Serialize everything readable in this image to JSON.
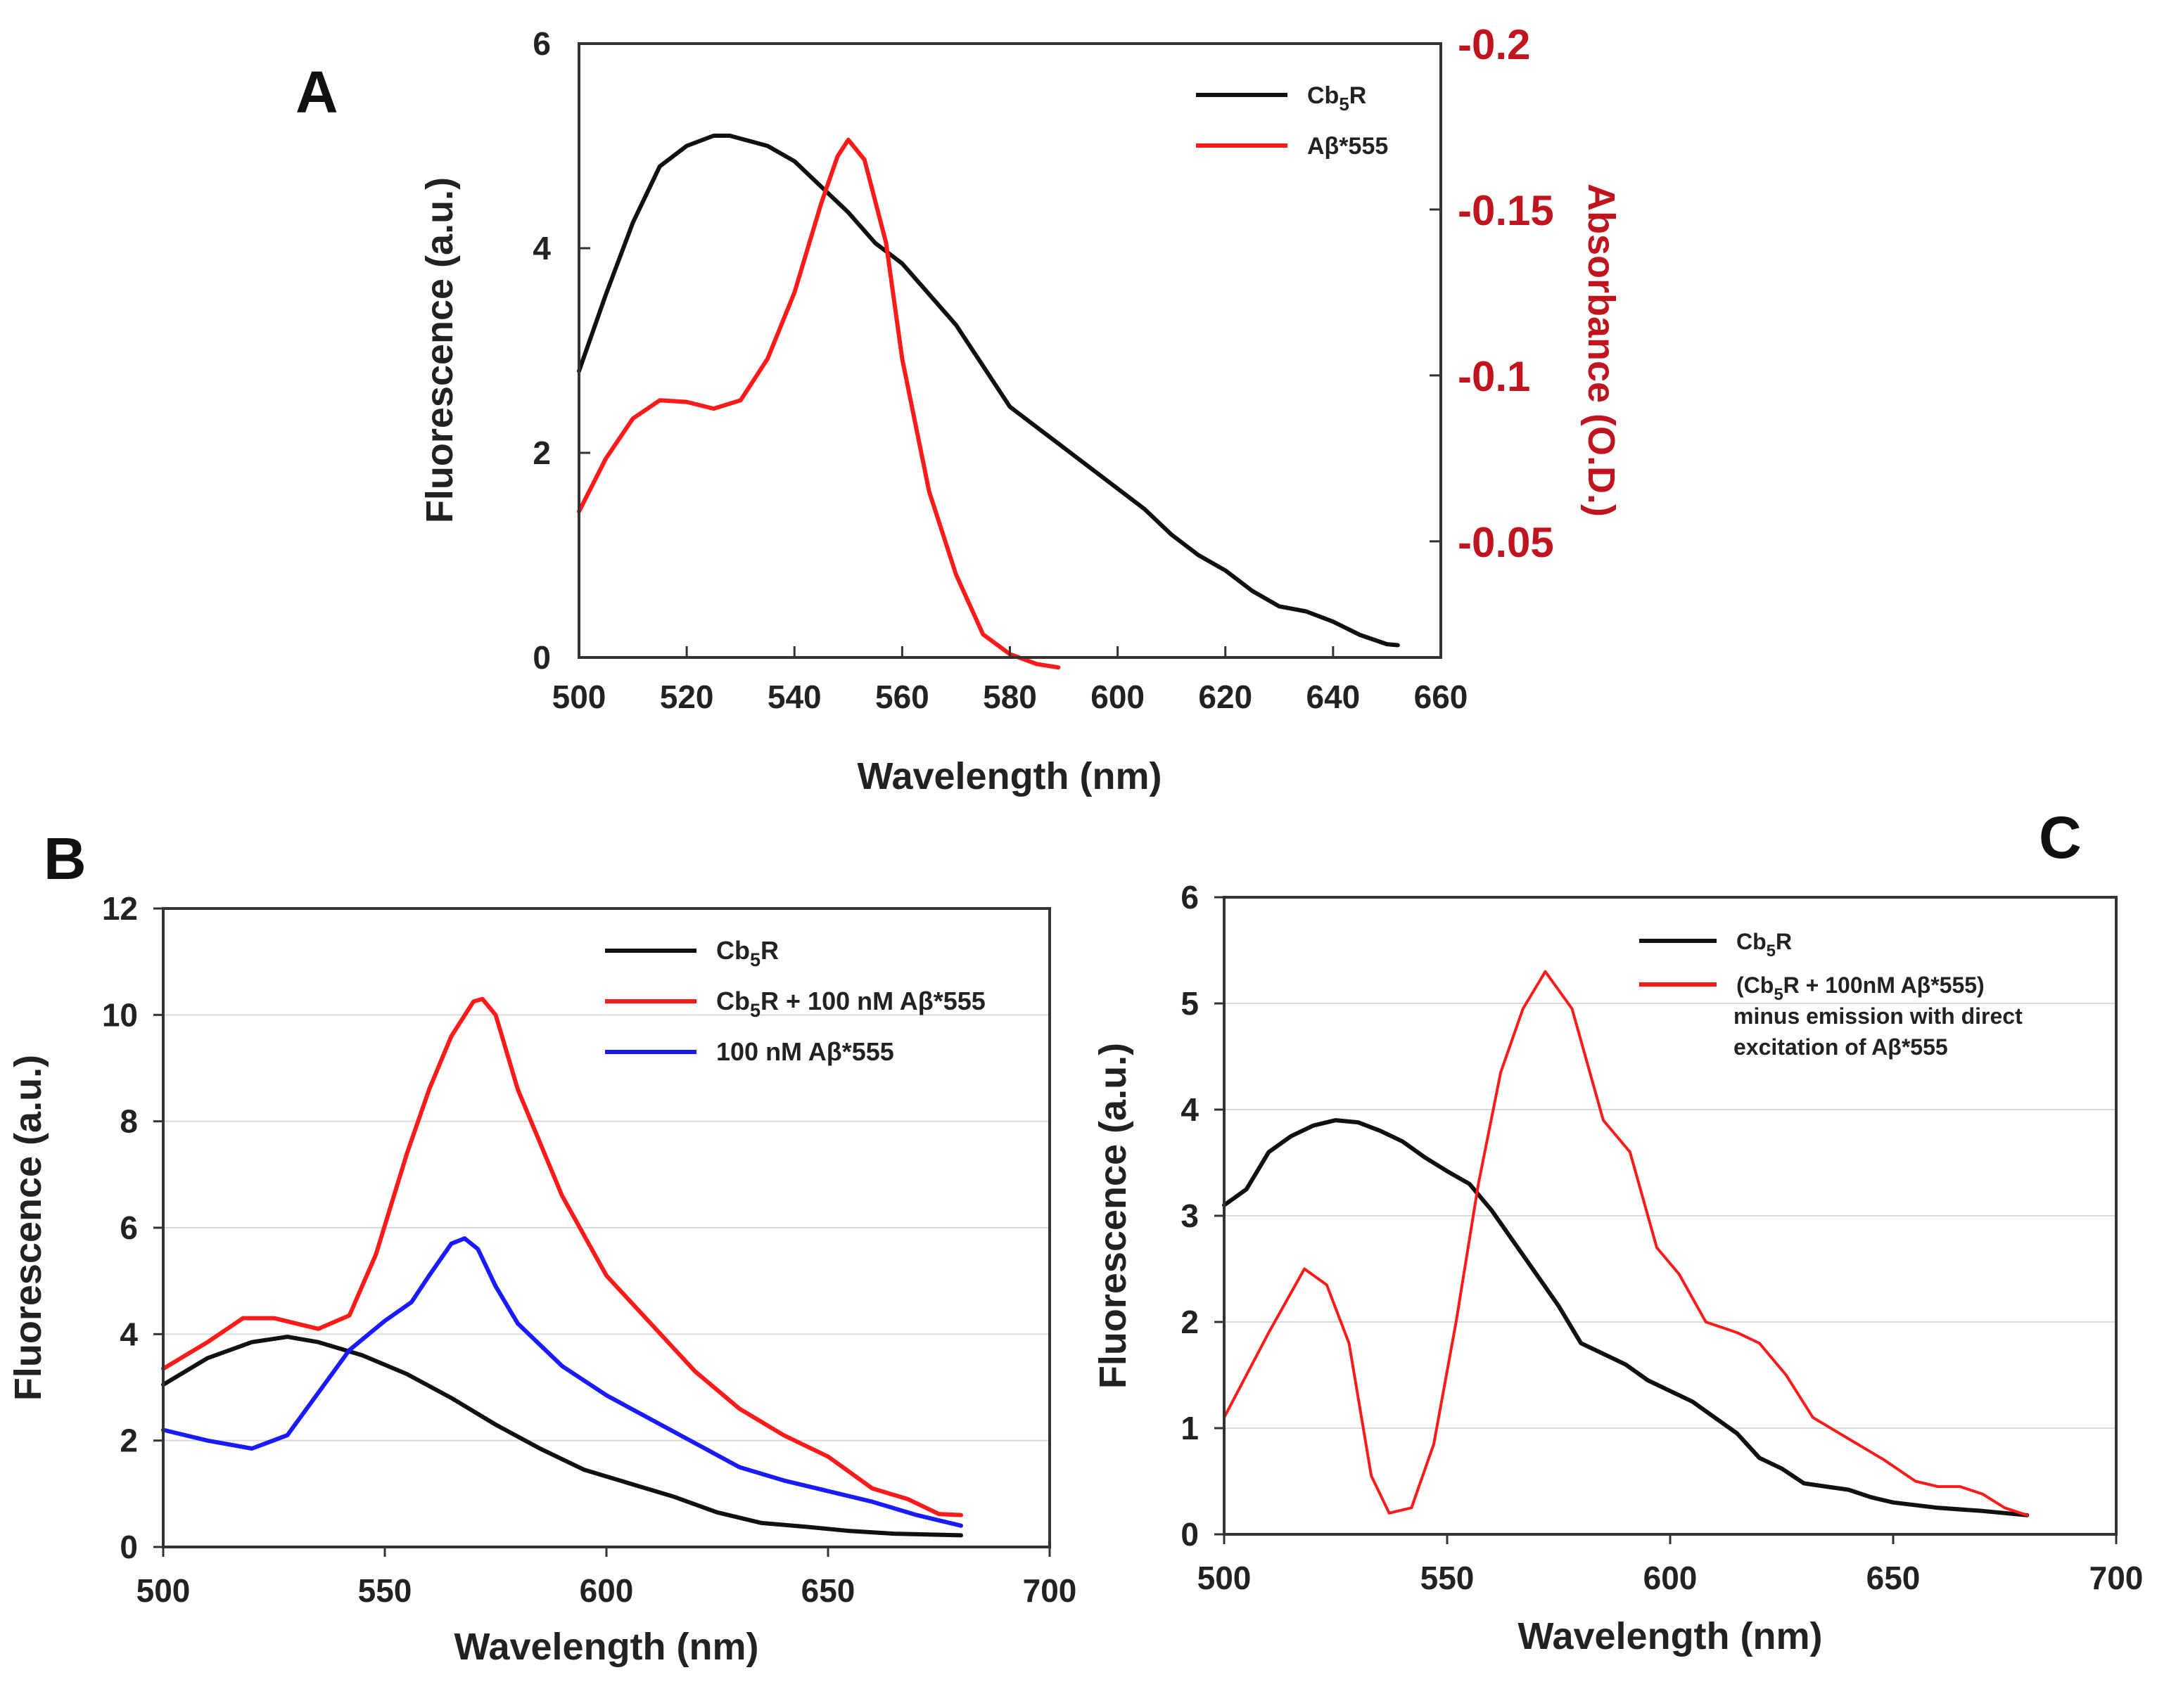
{
  "figure": {
    "panels": [
      "A",
      "B",
      "C"
    ]
  },
  "colors": {
    "black": "#111111",
    "red": "#ff1a1a",
    "blue": "#1a1aff",
    "absorbance_axis": "#c0151f",
    "background": "#ffffff"
  },
  "chart_data": [
    {
      "panel": "A",
      "type": "line",
      "xlabel": "Wavelength (nm)",
      "ylabel": "Fluorescence (a.u.)",
      "y2label": "Absorbance (O.D.)",
      "xlim": [
        500,
        660
      ],
      "ylim": [
        0,
        6
      ],
      "y2lim": [
        -0.015,
        -0.2
      ],
      "x_ticks": [
        500,
        520,
        540,
        560,
        580,
        600,
        620,
        640,
        660
      ],
      "x_tick_labels": [
        "500",
        "520",
        "540",
        "560",
        "580",
        "600",
        "620",
        "640",
        "660"
      ],
      "y_ticks": [
        0,
        2,
        4,
        6
      ],
      "y_tick_labels": [
        "0",
        "2",
        "4",
        "6"
      ],
      "y2_ticks": [
        -0.05,
        -0.1,
        -0.15,
        -0.2
      ],
      "y2_tick_labels": [
        "-0.05",
        "-0.1",
        "-0.15",
        "-0.2"
      ],
      "series": [
        {
          "name": "Cb5R",
          "legend": {
            "prefix": "Cb",
            "sub": "5",
            "suffix": "R"
          },
          "color": "#111111",
          "axis": "left",
          "x": [
            500,
            505,
            510,
            515,
            520,
            525,
            528,
            535,
            540,
            545,
            550,
            555,
            560,
            565,
            570,
            575,
            580,
            585,
            590,
            595,
            600,
            605,
            610,
            615,
            620,
            625,
            630,
            635,
            640,
            645,
            650,
            652
          ],
          "values": [
            2.8,
            3.55,
            4.25,
            4.8,
            5.0,
            5.1,
            5.1,
            5.0,
            4.85,
            4.6,
            4.35,
            4.05,
            3.85,
            3.55,
            3.25,
            2.85,
            2.45,
            2.25,
            2.05,
            1.85,
            1.65,
            1.45,
            1.2,
            1.0,
            0.85,
            0.65,
            0.5,
            0.45,
            0.35,
            0.22,
            0.13,
            0.12
          ]
        },
        {
          "name": "Aβ*555",
          "legend": {
            "prefix": "Aβ*555",
            "sub": "",
            "suffix": ""
          },
          "color": "#ff1a1a",
          "axis": "right",
          "x": [
            500,
            505,
            510,
            515,
            520,
            525,
            530,
            535,
            540,
            545,
            548,
            550,
            553,
            557,
            560,
            565,
            570,
            575,
            580,
            585,
            589
          ],
          "values": [
            -0.059,
            -0.075,
            -0.087,
            -0.0925,
            -0.092,
            -0.09,
            -0.0925,
            -0.105,
            -0.125,
            -0.152,
            -0.166,
            -0.171,
            -0.165,
            -0.14,
            -0.105,
            -0.065,
            -0.04,
            -0.022,
            -0.016,
            -0.013,
            -0.012
          ]
        }
      ]
    },
    {
      "panel": "B",
      "type": "line",
      "xlabel": "Wavelength (nm)",
      "ylabel": "Fluorescence (a.u.)",
      "xlim": [
        500,
        700
      ],
      "ylim": [
        0,
        12
      ],
      "x_ticks": [
        500,
        550,
        600,
        650,
        700
      ],
      "x_tick_labels": [
        "500",
        "550",
        "600",
        "650",
        "700"
      ],
      "y_ticks": [
        0,
        2,
        4,
        6,
        8,
        10,
        12
      ],
      "y_tick_labels": [
        "0",
        "2",
        "4",
        "6",
        "8",
        "10",
        "12"
      ],
      "series": [
        {
          "name": "Cb5R",
          "legend": {
            "prefix": "Cb",
            "sub": "5",
            "suffix": "R"
          },
          "color": "#111111",
          "x": [
            500,
            510,
            520,
            528,
            535,
            545,
            555,
            565,
            575,
            585,
            595,
            605,
            615,
            625,
            635,
            645,
            655,
            665,
            680
          ],
          "values": [
            3.05,
            3.55,
            3.85,
            3.95,
            3.85,
            3.6,
            3.25,
            2.8,
            2.3,
            1.85,
            1.45,
            1.2,
            0.95,
            0.65,
            0.45,
            0.38,
            0.3,
            0.25,
            0.22
          ]
        },
        {
          "name": "Cb5R + 100 nM Aβ*555",
          "legend": {
            "prefix": "Cb",
            "sub": "5",
            "suffix": "R + 100 nM Aβ*555"
          },
          "color": "#ff1a1a",
          "x": [
            500,
            510,
            518,
            525,
            535,
            542,
            548,
            555,
            560,
            565,
            570,
            572,
            575,
            580,
            590,
            600,
            610,
            620,
            630,
            640,
            650,
            655,
            660,
            668,
            675,
            680
          ],
          "values": [
            3.35,
            3.85,
            4.3,
            4.3,
            4.1,
            4.35,
            5.5,
            7.4,
            8.6,
            9.6,
            10.25,
            10.3,
            10.0,
            8.6,
            6.6,
            5.1,
            4.2,
            3.3,
            2.6,
            2.1,
            1.7,
            1.4,
            1.1,
            0.9,
            0.62,
            0.6
          ]
        },
        {
          "name": "100 nM Aβ*555",
          "legend": {
            "prefix": "100 nM Aβ*555",
            "sub": "",
            "suffix": ""
          },
          "color": "#1a1aff",
          "x": [
            500,
            510,
            520,
            528,
            535,
            542,
            550,
            556,
            560,
            565,
            568,
            571,
            575,
            580,
            590,
            600,
            610,
            620,
            630,
            640,
            650,
            660,
            670,
            680
          ],
          "values": [
            2.2,
            2.0,
            1.85,
            2.1,
            2.9,
            3.7,
            4.25,
            4.6,
            5.1,
            5.7,
            5.8,
            5.6,
            4.9,
            4.2,
            3.4,
            2.85,
            2.4,
            1.95,
            1.5,
            1.25,
            1.05,
            0.85,
            0.6,
            0.4
          ]
        }
      ]
    },
    {
      "panel": "C",
      "type": "line",
      "xlabel": "Wavelength (nm)",
      "ylabel": "Fluorescence (a.u.)",
      "xlim": [
        500,
        700
      ],
      "ylim": [
        0,
        6
      ],
      "x_ticks": [
        500,
        550,
        600,
        650,
        700
      ],
      "x_tick_labels": [
        "500",
        "550",
        "600",
        "650",
        "700"
      ],
      "y_ticks": [
        0,
        1,
        2,
        3,
        4,
        5,
        6
      ],
      "y_tick_labels": [
        "0",
        "1",
        "2",
        "3",
        "4",
        "5",
        "6"
      ],
      "series": [
        {
          "name": "Cb5R",
          "legend": {
            "prefix": "Cb",
            "sub": "5",
            "suffix": "R"
          },
          "color": "#111111",
          "x": [
            500,
            505,
            510,
            515,
            520,
            525,
            530,
            535,
            540,
            545,
            550,
            555,
            560,
            565,
            570,
            575,
            580,
            585,
            590,
            595,
            600,
            605,
            610,
            615,
            620,
            625,
            630,
            635,
            640,
            645,
            650,
            660,
            670,
            680
          ],
          "values": [
            3.1,
            3.25,
            3.6,
            3.75,
            3.85,
            3.9,
            3.88,
            3.8,
            3.7,
            3.55,
            3.42,
            3.3,
            3.05,
            2.75,
            2.45,
            2.15,
            1.8,
            1.7,
            1.6,
            1.45,
            1.35,
            1.25,
            1.1,
            0.95,
            0.72,
            0.62,
            0.48,
            0.45,
            0.42,
            0.35,
            0.3,
            0.25,
            0.22,
            0.18
          ]
        },
        {
          "name": "(Cb5R + 100nM Aβ*555) minus emission with direct excitation of Aβ*555",
          "legend": {
            "prefix": "(Cb",
            "sub": "5",
            "suffix": "R + 100nM Aβ*555)",
            "line2": "minus emission with direct",
            "line3": "excitation of Aβ*555"
          },
          "color": "#ff1a1a",
          "x": [
            500,
            510,
            518,
            523,
            528,
            533,
            537,
            542,
            547,
            552,
            557,
            562,
            567,
            572,
            578,
            585,
            591,
            597,
            602,
            608,
            615,
            620,
            626,
            632,
            640,
            648,
            655,
            660,
            665,
            670,
            675,
            680
          ],
          "values": [
            1.1,
            1.9,
            2.5,
            2.35,
            1.8,
            0.55,
            0.2,
            0.25,
            0.85,
            2.0,
            3.3,
            4.35,
            4.95,
            5.3,
            4.95,
            3.9,
            3.6,
            2.7,
            2.45,
            2.0,
            1.9,
            1.8,
            1.5,
            1.1,
            0.9,
            0.7,
            0.5,
            0.45,
            0.45,
            0.38,
            0.25,
            0.18
          ]
        }
      ]
    }
  ]
}
